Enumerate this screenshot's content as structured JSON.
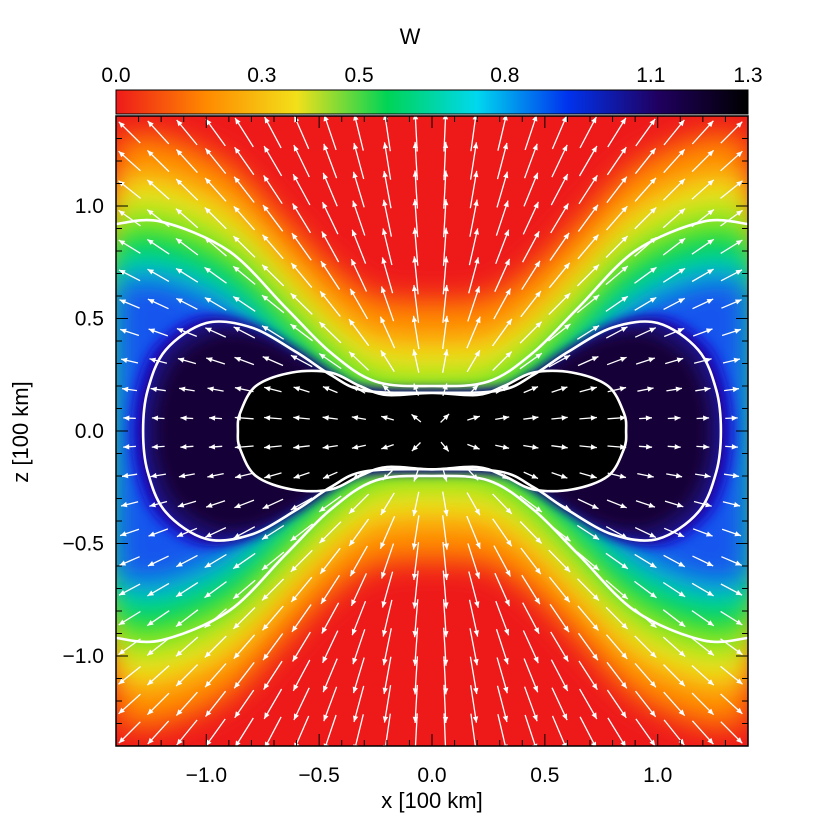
{
  "chart_data": {
    "type": "heatmap",
    "title": "W",
    "xlabel": "x [100 km]",
    "ylabel": "z [100 km]",
    "xlim": [
      -1.4,
      1.4
    ],
    "ylim": [
      -1.4,
      1.4
    ],
    "x_ticks": [
      -1.0,
      -0.5,
      0.0,
      0.5,
      1.0
    ],
    "x_tick_labels": [
      "−1.0",
      "−0.5",
      "0.0",
      "0.5",
      "1.0"
    ],
    "y_ticks": [
      -1.0,
      -0.5,
      0.0,
      0.5,
      1.0
    ],
    "y_tick_labels": [
      "−1.0",
      "−0.5",
      "0.0",
      "0.5",
      "1.0"
    ],
    "colorbar": {
      "label": "W",
      "range": [
        0.0,
        1.3
      ],
      "ticks": [
        0.0,
        0.3,
        0.5,
        0.8,
        1.1,
        1.3
      ],
      "tick_labels": [
        "0.0",
        "0.3",
        "0.5",
        "0.8",
        "1.1",
        "1.3"
      ],
      "colormap": [
        "#ee1a1a",
        "#ff8a00",
        "#f2e01a",
        "#00d455",
        "#00d8ee",
        "#0033ee",
        "#200060",
        "#000000"
      ],
      "position": "top"
    },
    "contours": [
      {
        "level": "outer",
        "points": [
          [
            -1.4,
            0.92
          ],
          [
            -1.2,
            0.93
          ],
          [
            -0.9,
            0.8
          ],
          [
            -0.65,
            0.55
          ],
          [
            -0.45,
            0.35
          ],
          [
            -0.25,
            0.22
          ],
          [
            0.0,
            0.2
          ],
          [
            0.25,
            0.22
          ],
          [
            0.45,
            0.35
          ],
          [
            0.65,
            0.55
          ],
          [
            0.9,
            0.8
          ],
          [
            1.2,
            0.93
          ],
          [
            1.4,
            0.92
          ]
        ]
      },
      {
        "level": "outer",
        "points": [
          [
            -1.4,
            -0.92
          ],
          [
            -1.2,
            -0.93
          ],
          [
            -0.9,
            -0.8
          ],
          [
            -0.65,
            -0.55
          ],
          [
            -0.45,
            -0.35
          ],
          [
            -0.25,
            -0.22
          ],
          [
            0.0,
            -0.2
          ],
          [
            0.25,
            -0.22
          ],
          [
            0.45,
            -0.35
          ],
          [
            0.65,
            -0.55
          ],
          [
            0.9,
            -0.8
          ],
          [
            1.2,
            -0.93
          ],
          [
            1.4,
            -0.92
          ]
        ]
      },
      {
        "level": "middle",
        "closed": true,
        "points": [
          [
            -1.0,
            0.48
          ],
          [
            -0.8,
            0.46
          ],
          [
            -0.6,
            0.35
          ],
          [
            -0.45,
            0.25
          ],
          [
            -0.3,
            0.18
          ],
          [
            0.0,
            0.17
          ],
          [
            0.3,
            0.18
          ],
          [
            0.45,
            0.25
          ],
          [
            0.6,
            0.35
          ],
          [
            0.8,
            0.46
          ],
          [
            1.0,
            0.48
          ],
          [
            1.18,
            0.36
          ],
          [
            1.26,
            0.18
          ],
          [
            1.28,
            0.0
          ],
          [
            1.26,
            -0.18
          ],
          [
            1.18,
            -0.36
          ],
          [
            1.0,
            -0.48
          ],
          [
            0.8,
            -0.46
          ],
          [
            0.6,
            -0.35
          ],
          [
            0.45,
            -0.25
          ],
          [
            0.3,
            -0.18
          ],
          [
            0.0,
            -0.17
          ],
          [
            -0.3,
            -0.18
          ],
          [
            -0.45,
            -0.25
          ],
          [
            -0.6,
            -0.35
          ],
          [
            -0.8,
            -0.46
          ],
          [
            -1.0,
            -0.48
          ],
          [
            -1.18,
            -0.36
          ],
          [
            -1.26,
            -0.18
          ],
          [
            -1.28,
            0.0
          ],
          [
            -1.26,
            0.18
          ],
          [
            -1.18,
            0.36
          ]
        ]
      },
      {
        "level": "inner",
        "closed": true,
        "points": [
          [
            -0.62,
            0.26
          ],
          [
            -0.45,
            0.26
          ],
          [
            -0.32,
            0.2
          ],
          [
            -0.2,
            0.16
          ],
          [
            0.0,
            0.17
          ],
          [
            0.2,
            0.16
          ],
          [
            0.32,
            0.2
          ],
          [
            0.45,
            0.26
          ],
          [
            0.62,
            0.26
          ],
          [
            0.78,
            0.2
          ],
          [
            0.85,
            0.08
          ],
          [
            0.86,
            0.0
          ],
          [
            0.85,
            -0.08
          ],
          [
            0.78,
            -0.2
          ],
          [
            0.62,
            -0.26
          ],
          [
            0.45,
            -0.26
          ],
          [
            0.32,
            -0.2
          ],
          [
            0.2,
            -0.16
          ],
          [
            0.0,
            -0.17
          ],
          [
            -0.2,
            -0.16
          ],
          [
            -0.32,
            -0.2
          ],
          [
            -0.45,
            -0.26
          ],
          [
            -0.62,
            -0.26
          ],
          [
            -0.78,
            -0.2
          ],
          [
            -0.85,
            -0.08
          ],
          [
            -0.86,
            0.0
          ],
          [
            -0.85,
            0.08
          ],
          [
            -0.78,
            0.2
          ]
        ]
      }
    ],
    "vector_field": "radial outflow velocity arrows, white",
    "grid": false
  }
}
